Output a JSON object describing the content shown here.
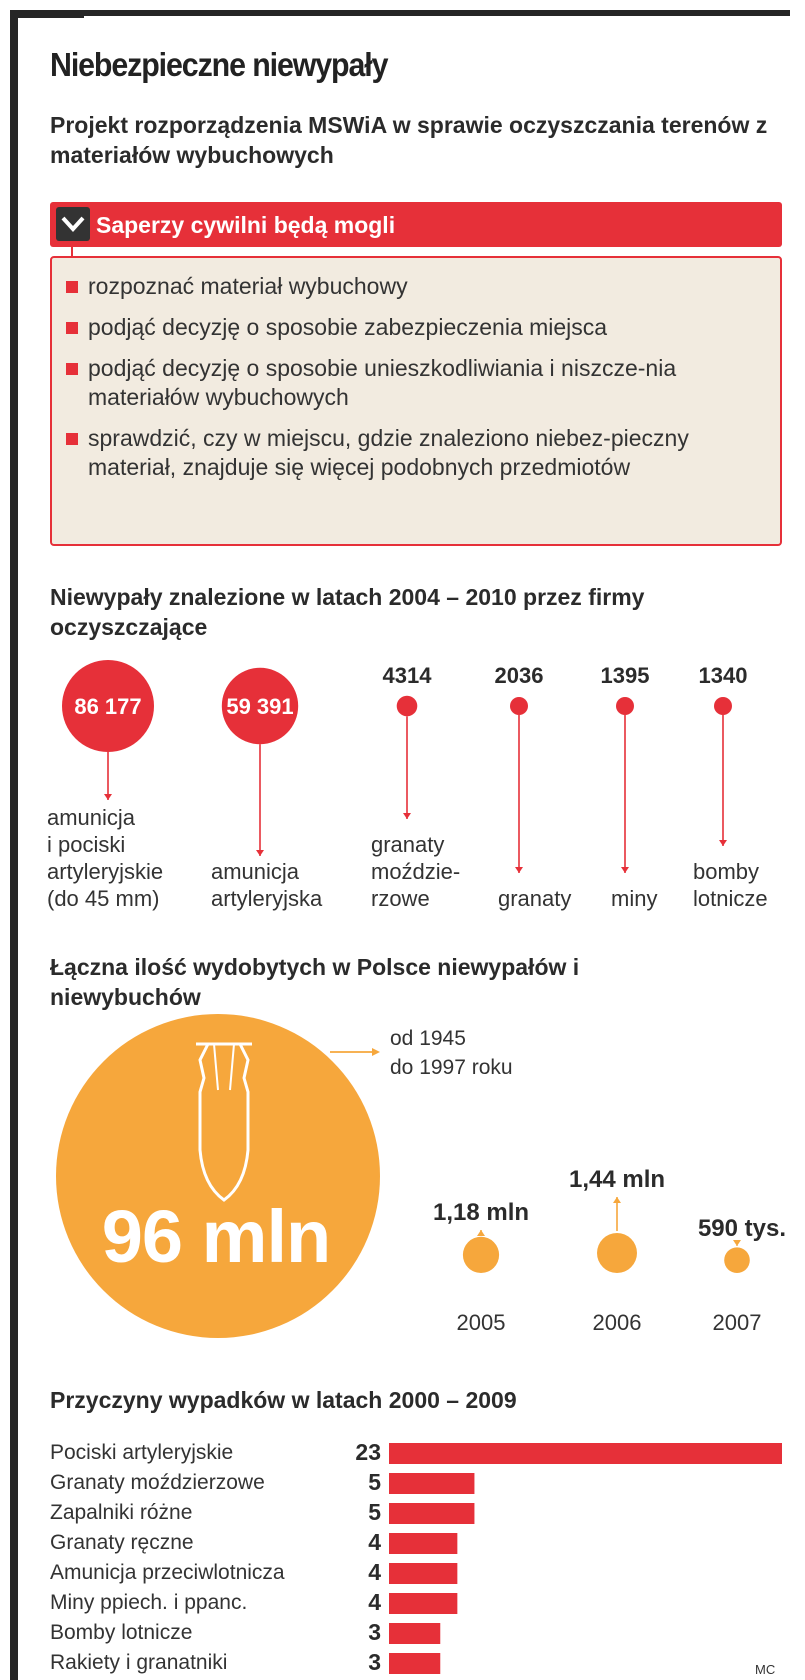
{
  "title": "Niebezpieczne niewypały",
  "subtitle": "Projekt  rozporządzenia MSWiA w sprawie oczyszczania terenów z materiałów wybuchowych",
  "box": {
    "heading": "Saperzy cywilni będą mogli",
    "items": [
      "rozpoznać materiał wybuchowy",
      "podjąć decyzję o sposobie zabezpieczenia miejsca",
      "podjąć decyzję o sposobie unieszkodliwiania i niszcze-nia materiałów wybuchowych",
      "sprawdzić, czy w miejscu, gdzie znaleziono niebez-pieczny materiał, znajduje się więcej podobnych przedmiotów"
    ]
  },
  "source": "MC",
  "colors": {
    "red": "#e63039",
    "orange": "#f6a73c",
    "beige": "#f2ebe0",
    "dark": "#262626"
  },
  "chart_data": [
    {
      "type": "bubble",
      "title": "Niewypały znalezione w latach 2004 – 2010 przez firmy oczyszczające",
      "categories": [
        "amunicja i pociski artyleryjskie (do 45 mm)",
        "amunicja artyleryjska",
        "granaty moździe-rzowe",
        "granaty",
        "miny",
        "bomby lotnicze"
      ],
      "labels": [
        "86 177",
        "59 391",
        "4314",
        "2036",
        "1395",
        "1340"
      ],
      "values": [
        86177,
        59391,
        4314,
        2036,
        1395,
        1340
      ]
    },
    {
      "type": "bubble",
      "title": "Łączna ilość wydobytych w Polsce niewypałów i niewybuchów",
      "main": {
        "label": "96 mln",
        "value": 96000000,
        "period": "od 1945 do 1997 roku"
      },
      "categories": [
        "2005",
        "2006",
        "2007"
      ],
      "labels": [
        "1,18 mln",
        "1,44 mln",
        "590 tys."
      ],
      "values": [
        1180000,
        1440000,
        590000
      ]
    },
    {
      "type": "bar",
      "title": "Przyczyny wypadków w latach 2000 – 2009",
      "categories": [
        "Pociski artyleryjskie",
        "Granaty moździerzowe",
        "Zapalniki różne",
        "Granaty ręczne",
        "Amunicja przeciwlotnicza",
        "Miny ppiech. i ppanc.",
        "Bomby lotnicze",
        "Rakiety i granatniki"
      ],
      "values": [
        23,
        5,
        5,
        4,
        4,
        4,
        3,
        3
      ]
    }
  ]
}
